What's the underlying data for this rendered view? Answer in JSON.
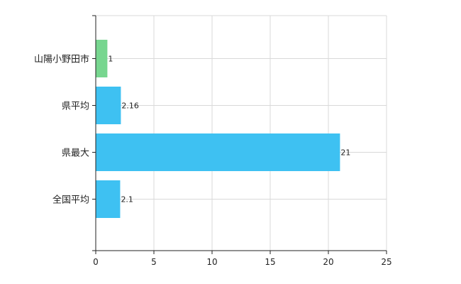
{
  "chart_data": {
    "type": "bar",
    "orientation": "horizontal",
    "title": "",
    "xlabel": "",
    "ylabel": "",
    "categories": [
      "山陽小野田市",
      "県平均",
      "県最大",
      "全国平均"
    ],
    "values": [
      1,
      2.16,
      21,
      2.1
    ],
    "data_labels": [
      "1",
      "2.16",
      "21",
      "2.1"
    ],
    "bar_colors": [
      "#77d68f",
      "#3ec1f2",
      "#3ec1f2",
      "#3ec1f2"
    ],
    "xlim": [
      0,
      25
    ],
    "x_ticks": [
      0,
      5,
      10,
      15,
      20,
      25
    ],
    "x_tick_labels": [
      "0",
      "5",
      "10",
      "15",
      "20",
      "25"
    ],
    "grid": true,
    "legend": "none",
    "colors": {
      "axis": "#222222",
      "grid": "#d9d9d9"
    }
  }
}
